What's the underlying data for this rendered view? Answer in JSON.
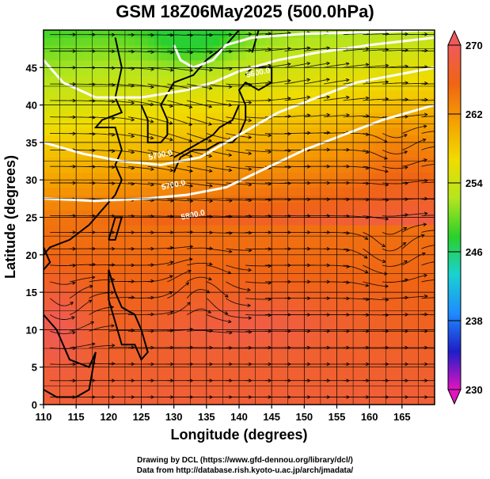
{
  "title": "GSM 18Z06May2025 (500.0hPa)",
  "xlabel": "Longitude (degrees)",
  "ylabel": "Latitude  (degrees)",
  "credits": {
    "line1": "Drawing by DCL (https://www.gfd-dennou.org/library/dcl/)",
    "line2": "Data from http://database.rish.kyoto-u.ac.jp/arch/jmadata/"
  },
  "colorbar": {
    "ticks": [
      230,
      238,
      246,
      254,
      262,
      270
    ],
    "colors": [
      "#e014c0",
      "#1e1ec8",
      "#1e8cff",
      "#19d2d2",
      "#2ad02a",
      "#b4e61e",
      "#f0dc00",
      "#f5a000",
      "#f06414",
      "#f05a5a"
    ]
  },
  "chart_data": {
    "type": "heatmap",
    "xlim": [
      110,
      170
    ],
    "ylim": [
      0,
      50
    ],
    "xticks": [
      110,
      115,
      120,
      125,
      130,
      135,
      140,
      145,
      150,
      155,
      160,
      165
    ],
    "yticks": [
      0,
      5,
      10,
      15,
      20,
      25,
      30,
      35,
      40,
      45
    ],
    "grid": true,
    "vmin": 230,
    "vmax": 270,
    "contour_labels": [
      {
        "text": "5600.0",
        "lon": 143,
        "lat": 44
      },
      {
        "text": "5700.0",
        "lon": 128,
        "lat": 33
      },
      {
        "text": "5700.0",
        "lon": 130,
        "lat": 29
      },
      {
        "text": "5800.0",
        "lon": 133,
        "lat": 25
      }
    ]
  }
}
